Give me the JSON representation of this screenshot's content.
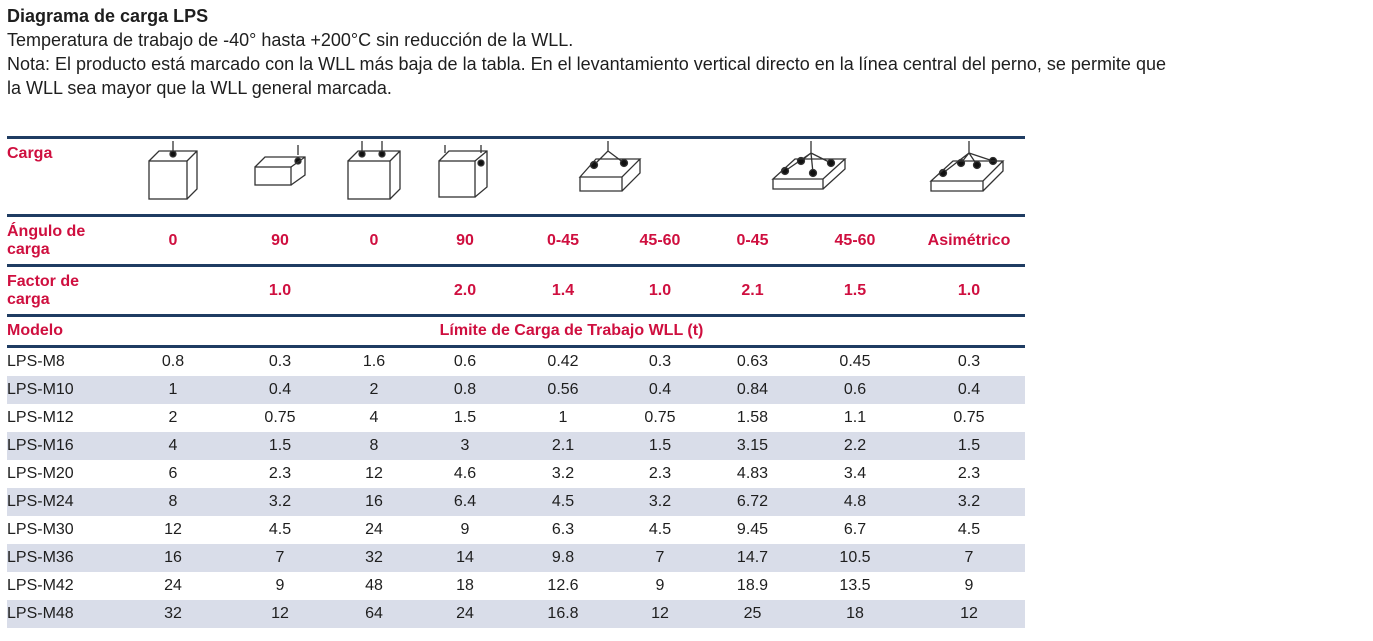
{
  "header": {
    "title": "Diagrama de carga LPS",
    "line1": "Temperatura de trabajo de -40° hasta +200°C sin reducción de la WLL.",
    "line2": "Nota: El producto está marcado con la WLL más baja de la tabla. En el levantamiento vertical directo en la línea central del perno, se permite que",
    "line3": "la WLL sea mayor que la WLL general marcada."
  },
  "colors": {
    "accent": "#cf0f3f",
    "rule": "#1f3c62",
    "stripe": "#d9dde9"
  },
  "table": {
    "carga_label": "Carga",
    "icons": [
      "single-vertical-lift-icon",
      "single-side-lift-icon",
      "double-vertical-lift-icon",
      "double-side-lift-icon",
      "two-leg-sling-icon",
      "four-leg-sling-icon",
      "asymmetric-sling-icon"
    ],
    "angle_label": "Ángulo de carga",
    "angles": [
      "0",
      "90",
      "0",
      "90",
      "0-45",
      "45-60",
      "0-45",
      "45-60",
      "Asimétrico"
    ],
    "factor_label": "Factor de carga",
    "factors": [
      "",
      "1.0",
      "",
      "2.0",
      "1.4",
      "1.0",
      "2.1",
      "1.5",
      "1.0"
    ],
    "model_label": "Modelo",
    "wll_label": "Límite de Carga de Trabajo WLL (t)",
    "rows": [
      [
        "LPS-M8",
        "0.8",
        "0.3",
        "1.6",
        "0.6",
        "0.42",
        "0.3",
        "0.63",
        "0.45",
        "0.3"
      ],
      [
        "LPS-M10",
        "1",
        "0.4",
        "2",
        "0.8",
        "0.56",
        "0.4",
        "0.84",
        "0.6",
        "0.4"
      ],
      [
        "LPS-M12",
        "2",
        "0.75",
        "4",
        "1.5",
        "1",
        "0.75",
        "1.58",
        "1.1",
        "0.75"
      ],
      [
        "LPS-M16",
        "4",
        "1.5",
        "8",
        "3",
        "2.1",
        "1.5",
        "3.15",
        "2.2",
        "1.5"
      ],
      [
        "LPS-M20",
        "6",
        "2.3",
        "12",
        "4.6",
        "3.2",
        "2.3",
        "4.83",
        "3.4",
        "2.3"
      ],
      [
        "LPS-M24",
        "8",
        "3.2",
        "16",
        "6.4",
        "4.5",
        "3.2",
        "6.72",
        "4.8",
        "3.2"
      ],
      [
        "LPS-M30",
        "12",
        "4.5",
        "24",
        "9",
        "6.3",
        "4.5",
        "9.45",
        "6.7",
        "4.5"
      ],
      [
        "LPS-M36",
        "16",
        "7",
        "32",
        "14",
        "9.8",
        "7",
        "14.7",
        "10.5",
        "7"
      ],
      [
        "LPS-M42",
        "24",
        "9",
        "48",
        "18",
        "12.6",
        "9",
        "18.9",
        "13.5",
        "9"
      ],
      [
        "LPS-M48",
        "32",
        "12",
        "64",
        "24",
        "16.8",
        "12",
        "25",
        "18",
        "12"
      ]
    ]
  }
}
